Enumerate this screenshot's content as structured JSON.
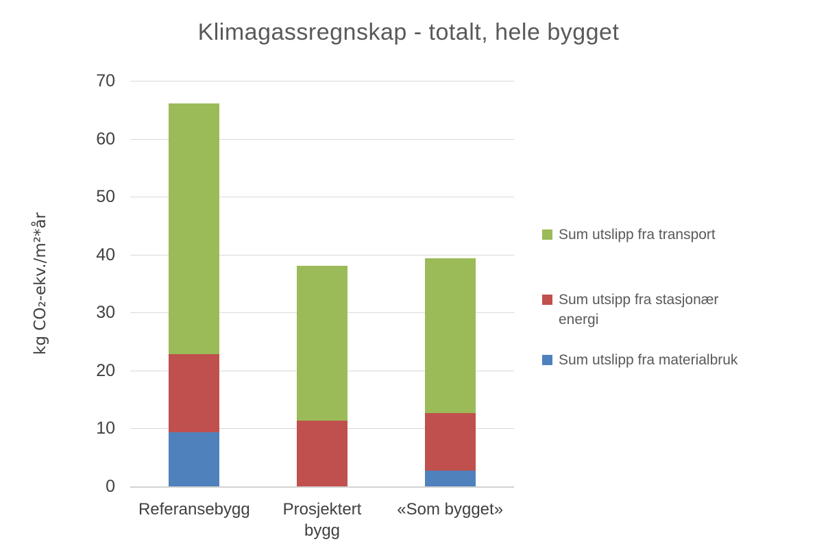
{
  "chart_data": {
    "type": "bar",
    "stacked": true,
    "title": "Klimagassregnskap - totalt, hele bygget",
    "ylabel": "kg CO₂-ekv./m²*år",
    "xlabel": "",
    "ylim": [
      0,
      70
    ],
    "yticks": [
      0,
      10,
      20,
      30,
      40,
      50,
      60,
      70
    ],
    "grid": "horizontal",
    "legend_position": "right",
    "categories": [
      "Referansebygg",
      "Prosjektert bygg",
      "«Som bygget»"
    ],
    "series": [
      {
        "name": "Sum utslipp fra materialbruk",
        "color": "#4F81BD",
        "values": [
          9.3,
          0,
          2.7
        ]
      },
      {
        "name": "Sum utsipp fra stasjonær energi",
        "color": "#C0504D",
        "values": [
          13.5,
          11.3,
          9.9
        ]
      },
      {
        "name": "Sum utslipp fra transport",
        "color": "#9BBB59",
        "values": [
          43.3,
          26.8,
          26.8
        ]
      }
    ],
    "stack_tops": {
      "Referansebygg": [
        9.3,
        22.8,
        66.1
      ],
      "Prosjektert bygg": [
        0,
        11.3,
        38.1
      ],
      "«Som bygget»": [
        2.7,
        12.6,
        39.4
      ]
    },
    "legend_items": [
      {
        "series": "Sum utslipp fra transport",
        "color": "#9BBB59",
        "lines": [
          "Sum utslipp fra transport"
        ]
      },
      {
        "series": "Sum utsipp fra stasjonær energi",
        "color": "#C0504D",
        "lines": [
          "Sum utsipp fra stasjonær",
          "energi"
        ]
      },
      {
        "series": "Sum utslipp fra materialbruk",
        "color": "#4F81BD",
        "lines": [
          "Sum utslipp fra materialbruk"
        ]
      }
    ],
    "style": {
      "gridline_color": "#D9D9D9",
      "title_color": "#595959",
      "axis_text_color": "#404040",
      "legend_text_color": "#595959",
      "background": "#FFFFFF"
    }
  }
}
